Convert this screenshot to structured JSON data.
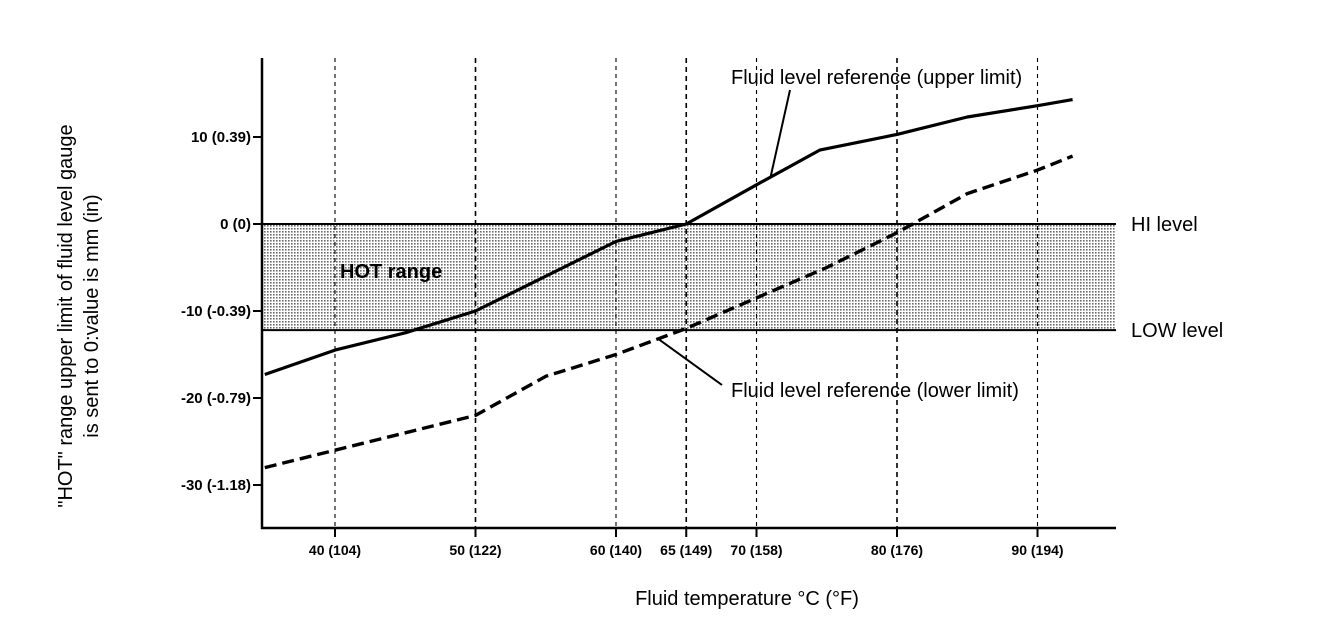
{
  "chart_data": {
    "type": "line",
    "xlabel": "Fluid temperature °C (°F)",
    "ylabel": [
      "\"HOT\" range upper limit of fluid level gauge",
      "is sent to 0:value is mm (in)"
    ],
    "x_ticks": [
      40,
      50,
      60,
      65,
      70,
      80,
      90
    ],
    "x_tick_labels": [
      "40 (104)",
      "50 (122)",
      "60 (140)",
      "65 (149)",
      "70 (158)",
      "80 (176)",
      "90 (194)"
    ],
    "y_ticks": [
      10,
      0,
      -10,
      -20,
      -30
    ],
    "y_tick_labels": [
      "10 (0.39)",
      "0 (0)",
      "-10 (-0.39)",
      "-20 (-0.79)",
      "-30 (-1.18)"
    ],
    "xlim": [
      35,
      95.5
    ],
    "ylim": [
      -35,
      19
    ],
    "grid": "vertical dashed at x ticks",
    "series": [
      {
        "name": "Fluid level reference (upper limit)",
        "style": "solid",
        "x": [
          35,
          40,
          45,
          50,
          55,
          60,
          65,
          70,
          74.5,
          80,
          85,
          90,
          92.5
        ],
        "y": [
          -17.3,
          -14.5,
          -12.5,
          -10,
          -6,
          -2,
          0,
          4.5,
          8.5,
          10.3,
          12.3,
          13.6,
          14.3
        ]
      },
      {
        "name": "Fluid level reference (lower limit)",
        "style": "dashed",
        "x": [
          35,
          40,
          45,
          50,
          55,
          60,
          65,
          70,
          75,
          80,
          85,
          90,
          92.5
        ],
        "y": [
          -28,
          -26,
          -24,
          -22,
          -17.5,
          -15,
          -12,
          -8.5,
          -5,
          -1,
          3.5,
          6.2,
          7.8
        ]
      }
    ],
    "bands": [
      {
        "label": "HOT range",
        "y_from": -12.2,
        "y_to": 0
      }
    ],
    "reference_lines": [
      {
        "label": "HI level",
        "y": 0
      },
      {
        "label": "LOW level",
        "y": -12.2
      }
    ],
    "annotations": [
      {
        "text": "Fluid level reference (upper limit)",
        "points_to_x": 71.0
      },
      {
        "text": "Fluid level reference (lower limit)",
        "points_to_x": 63.0
      }
    ]
  },
  "colors": {
    "ink": "#000000",
    "band": "#c8c8c8"
  }
}
